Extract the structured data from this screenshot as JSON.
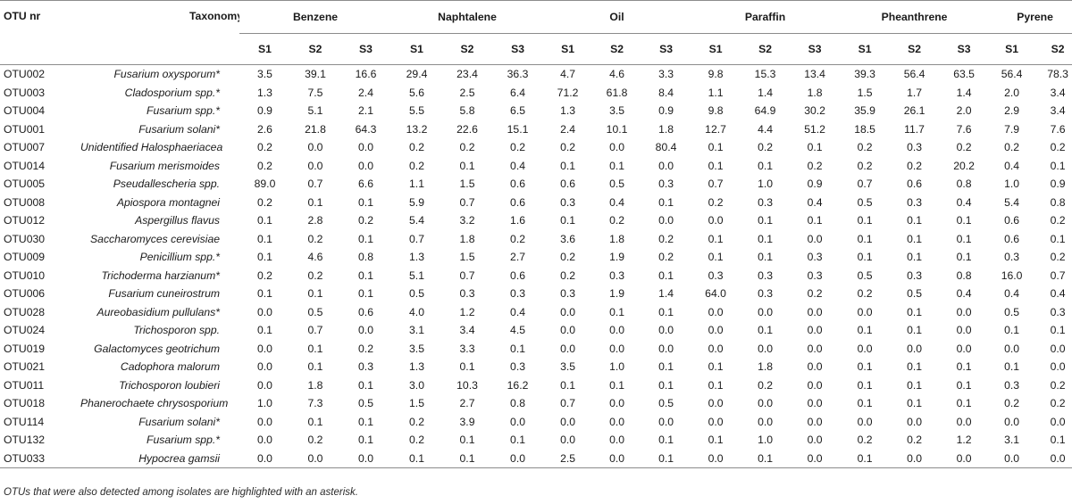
{
  "table": {
    "headers": {
      "otu": "OTU nr",
      "taxonomy": "Taxonomy",
      "groups": [
        "Benzene",
        "Naphtalene",
        "Oil",
        "Paraffin",
        "Pheanthrene",
        "Pyrene"
      ],
      "subs": [
        "S1",
        "S2",
        "S3",
        "S1",
        "S2",
        "S3",
        "S1",
        "S2",
        "S3",
        "S1",
        "S2",
        "S3",
        "S1",
        "S2",
        "S3",
        "S1",
        "S2"
      ]
    },
    "rows": [
      {
        "otu": "OTU002",
        "tax": "Fusarium oxysporum*",
        "v": [
          "3.5",
          "39.1",
          "16.6",
          "29.4",
          "23.4",
          "36.3",
          "4.7",
          "4.6",
          "3.3",
          "9.8",
          "15.3",
          "13.4",
          "39.3",
          "56.4",
          "63.5",
          "56.4",
          "78.3"
        ]
      },
      {
        "otu": "OTU003",
        "tax": "Cladosporium spp.*",
        "v": [
          "1.3",
          "7.5",
          "2.4",
          "5.6",
          "2.5",
          "6.4",
          "71.2",
          "61.8",
          "8.4",
          "1.1",
          "1.4",
          "1.8",
          "1.5",
          "1.7",
          "1.4",
          "2.0",
          "3.4"
        ]
      },
      {
        "otu": "OTU004",
        "tax": "Fusarium spp.*",
        "v": [
          "0.9",
          "5.1",
          "2.1",
          "5.5",
          "5.8",
          "6.5",
          "1.3",
          "3.5",
          "0.9",
          "9.8",
          "64.9",
          "30.2",
          "35.9",
          "26.1",
          "2.0",
          "2.9",
          "3.4"
        ]
      },
      {
        "otu": "OTU001",
        "tax": "Fusarium solani*",
        "v": [
          "2.6",
          "21.8",
          "64.3",
          "13.2",
          "22.6",
          "15.1",
          "2.4",
          "10.1",
          "1.8",
          "12.7",
          "4.4",
          "51.2",
          "18.5",
          "11.7",
          "7.6",
          "7.9",
          "7.6"
        ]
      },
      {
        "otu": "OTU007",
        "tax": "Unidentified Halosphaeriacea",
        "v": [
          "0.2",
          "0.0",
          "0.0",
          "0.2",
          "0.2",
          "0.2",
          "0.2",
          "0.0",
          "80.4",
          "0.1",
          "0.2",
          "0.1",
          "0.2",
          "0.3",
          "0.2",
          "0.2",
          "0.2"
        ]
      },
      {
        "otu": "OTU014",
        "tax": "Fusarium merismoides",
        "v": [
          "0.2",
          "0.0",
          "0.0",
          "0.2",
          "0.1",
          "0.4",
          "0.1",
          "0.1",
          "0.0",
          "0.1",
          "0.1",
          "0.2",
          "0.2",
          "0.2",
          "20.2",
          "0.4",
          "0.1"
        ]
      },
      {
        "otu": "OTU005",
        "tax": "Pseudallescheria spp.",
        "v": [
          "89.0",
          "0.7",
          "6.6",
          "1.1",
          "1.5",
          "0.6",
          "0.6",
          "0.5",
          "0.3",
          "0.7",
          "1.0",
          "0.9",
          "0.7",
          "0.6",
          "0.8",
          "1.0",
          "0.9"
        ]
      },
      {
        "otu": "OTU008",
        "tax": "Apiospora montagnei",
        "v": [
          "0.2",
          "0.1",
          "0.1",
          "5.9",
          "0.7",
          "0.6",
          "0.3",
          "0.4",
          "0.1",
          "0.2",
          "0.3",
          "0.4",
          "0.5",
          "0.3",
          "0.4",
          "5.4",
          "0.8"
        ]
      },
      {
        "otu": "OTU012",
        "tax": "Aspergillus flavus",
        "v": [
          "0.1",
          "2.8",
          "0.2",
          "5.4",
          "3.2",
          "1.6",
          "0.1",
          "0.2",
          "0.0",
          "0.0",
          "0.1",
          "0.1",
          "0.1",
          "0.1",
          "0.1",
          "0.6",
          "0.2"
        ]
      },
      {
        "otu": "OTU030",
        "tax": "Saccharomyces cerevisiae",
        "v": [
          "0.1",
          "0.2",
          "0.1",
          "0.7",
          "1.8",
          "0.2",
          "3.6",
          "1.8",
          "0.2",
          "0.1",
          "0.1",
          "0.0",
          "0.1",
          "0.1",
          "0.1",
          "0.6",
          "0.1"
        ]
      },
      {
        "otu": "OTU009",
        "tax": "Penicillium spp.*",
        "v": [
          "0.1",
          "4.6",
          "0.8",
          "1.3",
          "1.5",
          "2.7",
          "0.2",
          "1.9",
          "0.2",
          "0.1",
          "0.1",
          "0.3",
          "0.1",
          "0.1",
          "0.1",
          "0.3",
          "0.2"
        ]
      },
      {
        "otu": "OTU010",
        "tax": "Trichoderma harzianum*",
        "v": [
          "0.2",
          "0.2",
          "0.1",
          "5.1",
          "0.7",
          "0.6",
          "0.2",
          "0.3",
          "0.1",
          "0.3",
          "0.3",
          "0.3",
          "0.5",
          "0.3",
          "0.8",
          "16.0",
          "0.7"
        ]
      },
      {
        "otu": "OTU006",
        "tax": "Fusarium cuneirostrum",
        "v": [
          "0.1",
          "0.1",
          "0.1",
          "0.5",
          "0.3",
          "0.3",
          "0.3",
          "1.9",
          "1.4",
          "64.0",
          "0.3",
          "0.2",
          "0.2",
          "0.5",
          "0.4",
          "0.4",
          "0.4"
        ]
      },
      {
        "otu": "OTU028",
        "tax": "Aureobasidium pullulans*",
        "v": [
          "0.0",
          "0.5",
          "0.6",
          "4.0",
          "1.2",
          "0.4",
          "0.0",
          "0.1",
          "0.1",
          "0.0",
          "0.0",
          "0.0",
          "0.0",
          "0.1",
          "0.0",
          "0.5",
          "0.3"
        ]
      },
      {
        "otu": "OTU024",
        "tax": "Trichosporon spp.",
        "v": [
          "0.1",
          "0.7",
          "0.0",
          "3.1",
          "3.4",
          "4.5",
          "0.0",
          "0.0",
          "0.0",
          "0.0",
          "0.1",
          "0.0",
          "0.1",
          "0.1",
          "0.0",
          "0.1",
          "0.1"
        ]
      },
      {
        "otu": "OTU019",
        "tax": "Galactomyces geotrichum",
        "v": [
          "0.0",
          "0.1",
          "0.2",
          "3.5",
          "3.3",
          "0.1",
          "0.0",
          "0.0",
          "0.0",
          "0.0",
          "0.0",
          "0.0",
          "0.0",
          "0.0",
          "0.0",
          "0.0",
          "0.0"
        ]
      },
      {
        "otu": "OTU021",
        "tax": "Cadophora malorum",
        "v": [
          "0.0",
          "0.1",
          "0.3",
          "1.3",
          "0.1",
          "0.3",
          "3.5",
          "1.0",
          "0.1",
          "0.1",
          "1.8",
          "0.0",
          "0.1",
          "0.1",
          "0.1",
          "0.1",
          "0.0"
        ]
      },
      {
        "otu": "OTU011",
        "tax": "Trichosporon loubieri",
        "v": [
          "0.0",
          "1.8",
          "0.1",
          "3.0",
          "10.3",
          "16.2",
          "0.1",
          "0.1",
          "0.1",
          "0.1",
          "0.2",
          "0.0",
          "0.1",
          "0.1",
          "0.1",
          "0.3",
          "0.2"
        ]
      },
      {
        "otu": "OTU018",
        "tax": "Phanerochaete chrysosporium",
        "v": [
          "1.0",
          "7.3",
          "0.5",
          "1.5",
          "2.7",
          "0.8",
          "0.7",
          "0.0",
          "0.5",
          "0.0",
          "0.0",
          "0.0",
          "0.1",
          "0.1",
          "0.1",
          "0.2",
          "0.2"
        ]
      },
      {
        "otu": "OTU114",
        "tax": "Fusarium solani*",
        "v": [
          "0.0",
          "0.1",
          "0.1",
          "0.2",
          "3.9",
          "0.0",
          "0.0",
          "0.0",
          "0.0",
          "0.0",
          "0.0",
          "0.0",
          "0.0",
          "0.0",
          "0.0",
          "0.0",
          "0.0"
        ]
      },
      {
        "otu": "OTU132",
        "tax": "Fusarium spp.*",
        "v": [
          "0.0",
          "0.2",
          "0.1",
          "0.2",
          "0.1",
          "0.1",
          "0.0",
          "0.0",
          "0.1",
          "0.1",
          "1.0",
          "0.0",
          "0.2",
          "0.2",
          "1.2",
          "3.1",
          "0.1"
        ]
      },
      {
        "otu": "OTU033",
        "tax": "Hypocrea gamsii",
        "v": [
          "0.0",
          "0.0",
          "0.0",
          "0.1",
          "0.1",
          "0.0",
          "2.5",
          "0.0",
          "0.1",
          "0.0",
          "0.1",
          "0.0",
          "0.1",
          "0.0",
          "0.0",
          "0.0",
          "0.0"
        ]
      }
    ]
  },
  "footnote": "OTUs that were also detected among isolates are highlighted with an asterisk."
}
